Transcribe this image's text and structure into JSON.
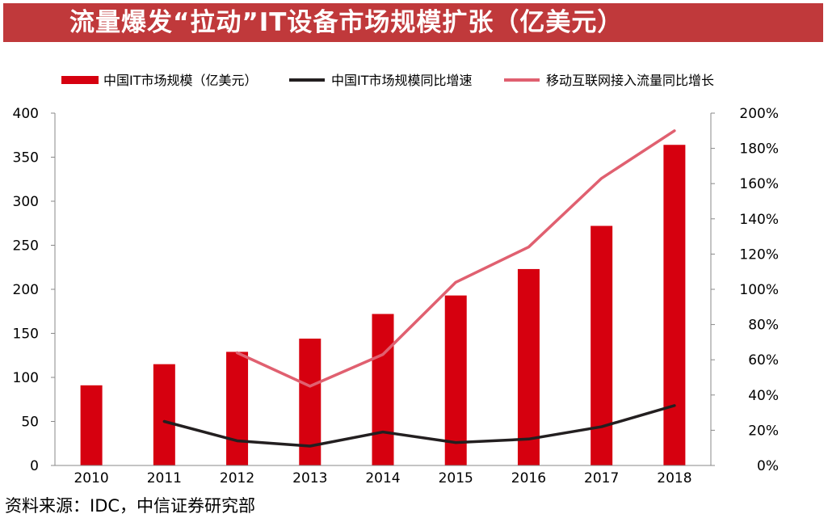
{
  "page_title": "流量爆发“拉动”IT设备市场规模扩张（亿美元）",
  "source_note": "资料来源：IDC，中信证券研究部",
  "colors": {
    "bar": "#d6000f",
    "growth_line": "#231f20",
    "traffic_line": "#e06070",
    "title_bg": "#c0393b"
  },
  "chart_data": {
    "type": "bar",
    "title": "流量爆发“拉动”IT设备市场规模扩张（亿美元）",
    "categories": [
      "2010",
      "2011",
      "2012",
      "2013",
      "2014",
      "2015",
      "2016",
      "2017",
      "2018"
    ],
    "series": [
      {
        "name": "中国IT市场规模（亿美元）",
        "type": "bar",
        "axis": "left",
        "values": [
          91,
          115,
          129,
          144,
          172,
          193,
          223,
          272,
          364
        ]
      },
      {
        "name": "中国IT市场规模同比增速",
        "type": "line",
        "axis": "right",
        "values": [
          null,
          25,
          14,
          11,
          19,
          13,
          15,
          22,
          34
        ]
      },
      {
        "name": "移动互联网接入流量同比增长",
        "type": "line",
        "axis": "right",
        "values": [
          null,
          null,
          64,
          45,
          63,
          104,
          124,
          163,
          190
        ]
      }
    ],
    "y_left": {
      "range": [
        0,
        400
      ],
      "ticks": [
        "0",
        "50",
        "100",
        "150",
        "200",
        "250",
        "300",
        "350",
        "400"
      ]
    },
    "y_right": {
      "range": [
        0,
        200
      ],
      "ticks": [
        "0%",
        "20%",
        "40%",
        "60%",
        "80%",
        "100%",
        "120%",
        "140%",
        "160%",
        "180%",
        "200%"
      ]
    },
    "legend_position": "top",
    "grid": false
  }
}
